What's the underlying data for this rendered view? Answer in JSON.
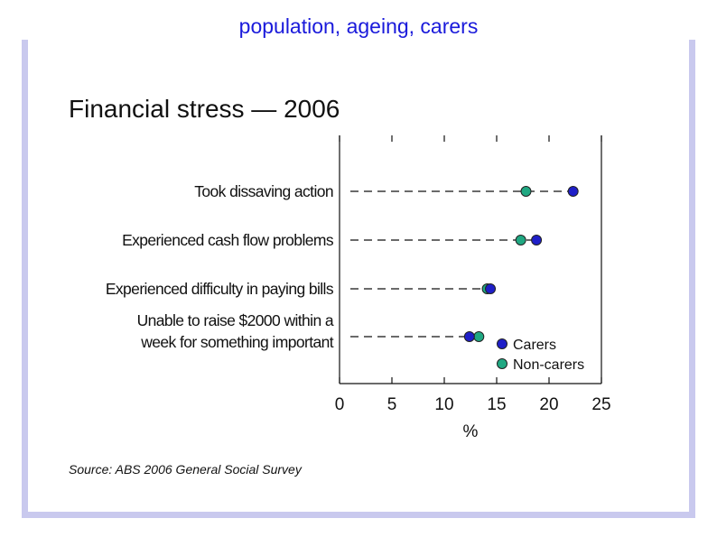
{
  "header": {
    "title": "population, ageing, carers"
  },
  "colors": {
    "carers": "#1f1fc8",
    "non_carers": "#20a882",
    "frame": "#c9c9ee",
    "title_blue": "#1a1adb"
  },
  "chart_data": {
    "type": "scatter",
    "title": "Financial stress — 2006",
    "source": "Source: ABS 2006 General Social Survey",
    "xlabel": "%",
    "xlim": [
      0,
      25
    ],
    "xticks": [
      "0",
      "5",
      "10",
      "15",
      "20",
      "25"
    ],
    "categories": [
      [
        "Took dissaving action"
      ],
      [
        "Experienced cash flow problems"
      ],
      [
        "Experienced difficulty in paying bills"
      ],
      [
        "Unable to raise $2000 within a",
        "week for something important"
      ]
    ],
    "series": [
      {
        "name": "Carers",
        "values": [
          22.3,
          18.8,
          14.4,
          12.4
        ]
      },
      {
        "name": "Non-carers",
        "values": [
          17.8,
          17.3,
          14.1,
          13.3
        ]
      }
    ],
    "legend_position": "bottom-right"
  }
}
